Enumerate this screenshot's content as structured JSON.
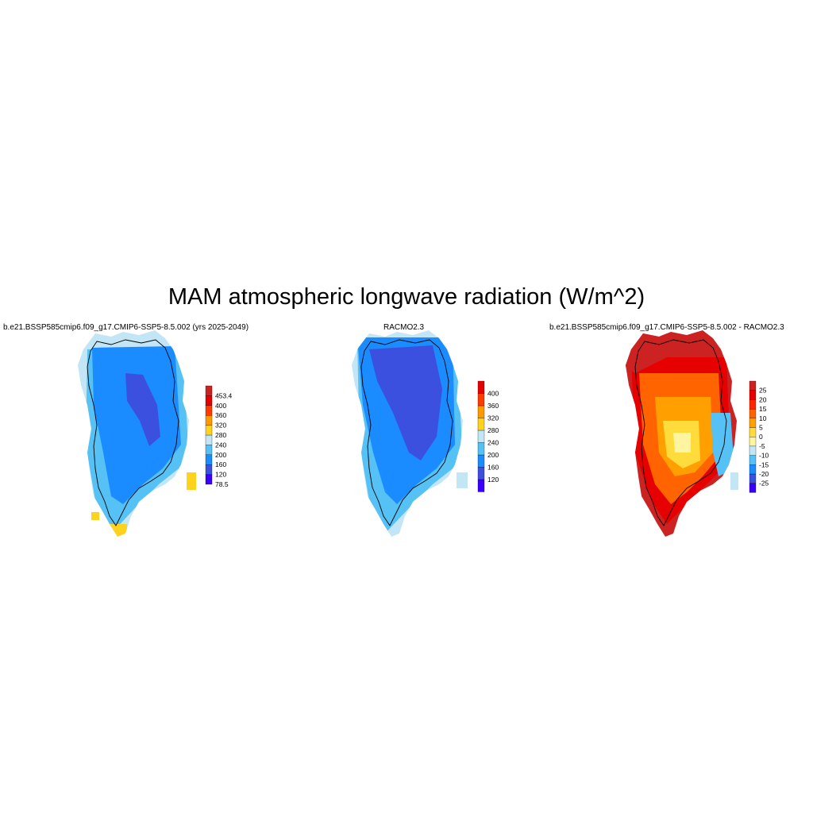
{
  "title": "MAM atmospheric longwave radiation (W/m^2)",
  "colors": {
    "abs_scale": [
      "#3a00ff",
      "#3c50e0",
      "#1a8cff",
      "#55c1f5",
      "#c2e6f5",
      "#ffd21e",
      "#ff9900",
      "#ff3b00",
      "#e60000",
      "#cc2222"
    ],
    "diff_scale": [
      "#3a00ff",
      "#3c50e0",
      "#1a8cff",
      "#55c1f5",
      "#c2e6f5",
      "#fff5a0",
      "#ffdc3c",
      "#ffa000",
      "#ff6400",
      "#ff2800",
      "#e60000",
      "#cc2222"
    ]
  },
  "chart_data": [
    {
      "type": "heatmap",
      "title": "b.e21.BSSP585cmip6.f09_g17.CMIP6-SSP5-8.5.002 (yrs 2025-2049)",
      "region": "Greenland",
      "colorbar": {
        "labels": [
          "78.5",
          "120",
          "160",
          "200",
          "240",
          "280",
          "320",
          "360",
          "400",
          "453.4"
        ],
        "min": 78.5,
        "max": 453.4
      },
      "field_summary": {
        "interior": "120-160",
        "ice_sheet": "160-200",
        "margins": "200-240",
        "south_coast": "280-320"
      }
    },
    {
      "type": "heatmap",
      "title": "RACMO2.3",
      "region": "Greenland",
      "colorbar": {
        "labels": [
          "120",
          "160",
          "200",
          "240",
          "280",
          "320",
          "360",
          "400"
        ]
      },
      "field_summary": {
        "interior": "120-160",
        "ice_sheet": "160-200",
        "margins": "200-240"
      }
    },
    {
      "type": "heatmap",
      "title": "b.e21.BSSP585cmip6.f09_g17.CMIP6-SSP5-8.5.002 - RACMO2.3",
      "region": "Greenland",
      "colorbar": {
        "labels": [
          "-25",
          "-20",
          "-15",
          "-10",
          "-5",
          "0",
          "5",
          "10",
          "15",
          "20",
          "25"
        ]
      },
      "field_summary": {
        "interior": "5-15",
        "north": "15-25",
        "south": "20-25",
        "east_coast": "-10-0"
      }
    }
  ]
}
